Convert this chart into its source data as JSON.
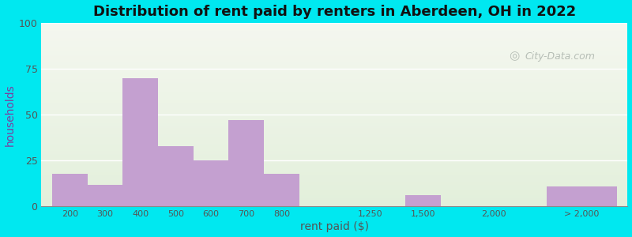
{
  "title": "Distribution of rent paid by renters in Aberdeen, OH in 2022",
  "xlabel": "rent paid ($)",
  "ylabel": "households",
  "bar_color": "#c4a0d0",
  "outer_bg": "#00e8f0",
  "yticks": [
    0,
    25,
    50,
    75,
    100
  ],
  "ylim": [
    0,
    100
  ],
  "xtick_labels": [
    "200",
    "300",
    "400",
    "500",
    "600",
    "700",
    "800",
    "1,250",
    "1,500",
    "2,000",
    "> 2,000"
  ],
  "values": [
    18,
    12,
    70,
    33,
    25,
    47,
    18,
    0,
    6,
    0,
    11
  ],
  "grid_color": "#ffffff",
  "watermark": "City-Data.com",
  "bg_top": "#f2f5ee",
  "bg_bottom": "#e4efdc",
  "title_fontsize": 13,
  "axis_label_fontsize": 10,
  "tick_fontsize": 8,
  "ylabel_color": "#7a3fa0",
  "xlabel_color": "#555555",
  "title_color": "#111111"
}
